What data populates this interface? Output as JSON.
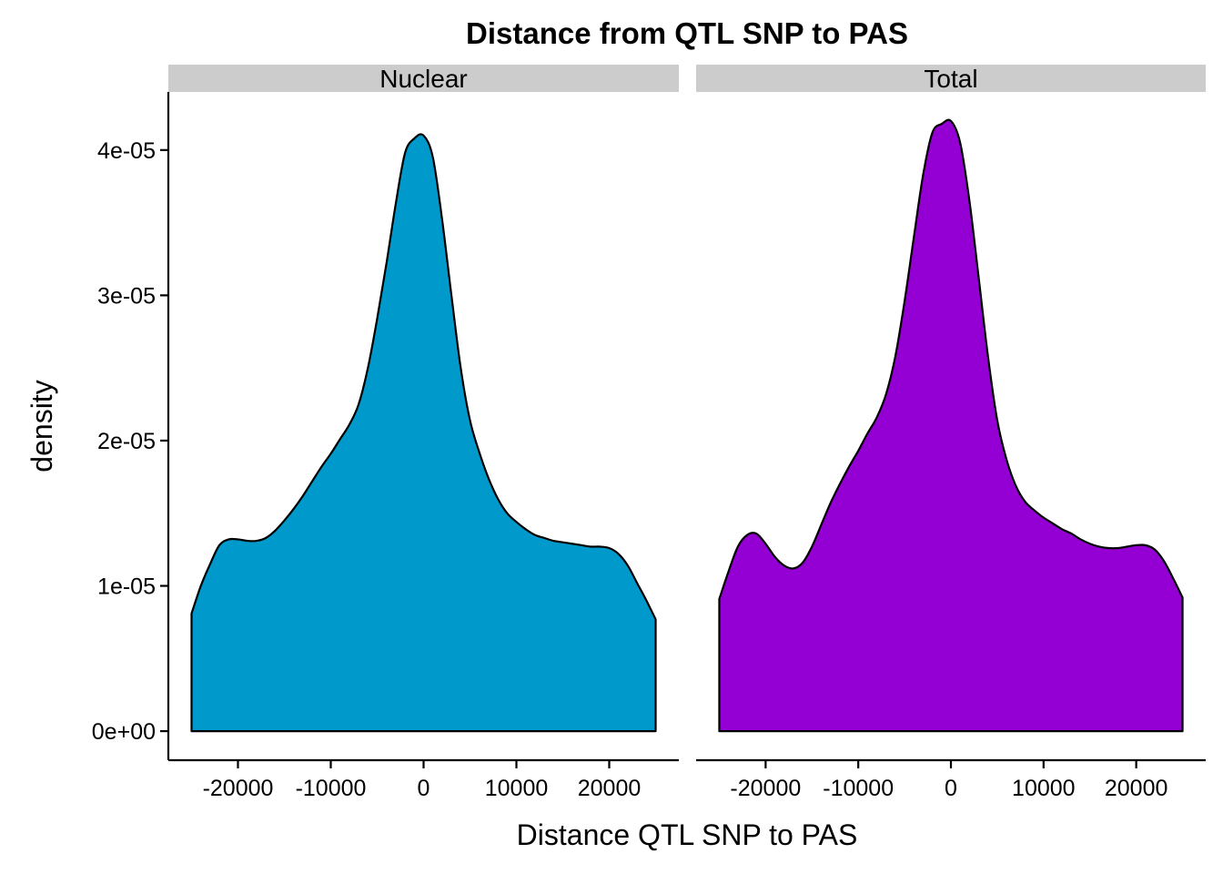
{
  "chart_data": {
    "type": "area",
    "title": "Distance from QTL SNP to PAS",
    "xlabel": "Distance QTL SNP to PAS",
    "ylabel": "density",
    "xlim": [
      -27500,
      27500
    ],
    "ylim": [
      -2e-06,
      4.4e-05
    ],
    "x_ticks": [
      -20000,
      -10000,
      0,
      10000,
      20000
    ],
    "x_tick_labels": [
      "-20000",
      "-10000",
      "0",
      "10000",
      "20000"
    ],
    "y_ticks": [
      0,
      1e-05,
      2e-05,
      3e-05,
      4e-05
    ],
    "y_tick_labels": [
      "0e+00",
      "1e-05",
      "2e-05",
      "3e-05",
      "4e-05"
    ],
    "grid": false,
    "legend": "none",
    "panels": [
      {
        "name": "Nuclear",
        "color": "#0099CC",
        "x": [
          -25000,
          -24000,
          -23000,
          -22000,
          -21000,
          -20000,
          -19000,
          -18000,
          -17000,
          -16000,
          -15000,
          -14000,
          -13000,
          -12000,
          -11000,
          -10000,
          -9000,
          -8000,
          -7000,
          -6000,
          -5000,
          -4000,
          -3000,
          -2000,
          -1000,
          0,
          1000,
          2000,
          3000,
          4000,
          5000,
          6000,
          7000,
          8000,
          9000,
          10000,
          11000,
          12000,
          13000,
          14000,
          15000,
          16000,
          17000,
          18000,
          19000,
          20000,
          21000,
          22000,
          23000,
          24000,
          25000
        ],
        "values": [
          8.1e-06,
          1e-05,
          1.15e-05,
          1.28e-05,
          1.32e-05,
          1.32e-05,
          1.31e-05,
          1.31e-05,
          1.33e-05,
          1.38e-05,
          1.45e-05,
          1.53e-05,
          1.62e-05,
          1.72e-05,
          1.82e-05,
          1.91e-05,
          2.01e-05,
          2.11e-05,
          2.25e-05,
          2.5e-05,
          2.84e-05,
          3.22e-05,
          3.63e-05,
          3.98e-05,
          4.08e-05,
          4.1e-05,
          3.95e-05,
          3.52e-05,
          3e-05,
          2.5e-05,
          2.14e-05,
          1.92e-05,
          1.74e-05,
          1.6e-05,
          1.5e-05,
          1.44e-05,
          1.39e-05,
          1.35e-05,
          1.33e-05,
          1.31e-05,
          1.3e-05,
          1.29e-05,
          1.28e-05,
          1.27e-05,
          1.27e-05,
          1.26e-05,
          1.22e-05,
          1.14e-05,
          1.02e-05,
          9e-06,
          7.7e-06
        ]
      },
      {
        "name": "Total",
        "color": "#9400D3",
        "x": [
          -25000,
          -24000,
          -23000,
          -22000,
          -21000,
          -20000,
          -19000,
          -18000,
          -17000,
          -16000,
          -15000,
          -14000,
          -13000,
          -12000,
          -11000,
          -10000,
          -9000,
          -8000,
          -7000,
          -6000,
          -5000,
          -4000,
          -3000,
          -2000,
          -1000,
          0,
          1000,
          2000,
          3000,
          4000,
          5000,
          6000,
          7000,
          8000,
          9000,
          10000,
          11000,
          12000,
          13000,
          14000,
          15000,
          16000,
          17000,
          18000,
          19000,
          20000,
          21000,
          22000,
          23000,
          24000,
          25000
        ],
        "values": [
          9.1e-06,
          1.1e-05,
          1.27e-05,
          1.35e-05,
          1.36e-05,
          1.29e-05,
          1.2e-05,
          1.14e-05,
          1.12e-05,
          1.16e-05,
          1.27e-05,
          1.42e-05,
          1.57e-05,
          1.7e-05,
          1.82e-05,
          1.93e-05,
          2.05e-05,
          2.16e-05,
          2.32e-05,
          2.58e-05,
          2.96e-05,
          3.4e-05,
          3.83e-05,
          4.12e-05,
          4.18e-05,
          4.2e-05,
          4.05e-05,
          3.65e-05,
          3.12e-05,
          2.58e-05,
          2.14e-05,
          1.87e-05,
          1.69e-05,
          1.58e-05,
          1.52e-05,
          1.47e-05,
          1.43e-05,
          1.39e-05,
          1.36e-05,
          1.32e-05,
          1.29e-05,
          1.27e-05,
          1.26e-05,
          1.26e-05,
          1.27e-05,
          1.28e-05,
          1.28e-05,
          1.25e-05,
          1.17e-05,
          1.05e-05,
          9.2e-06
        ]
      }
    ]
  }
}
